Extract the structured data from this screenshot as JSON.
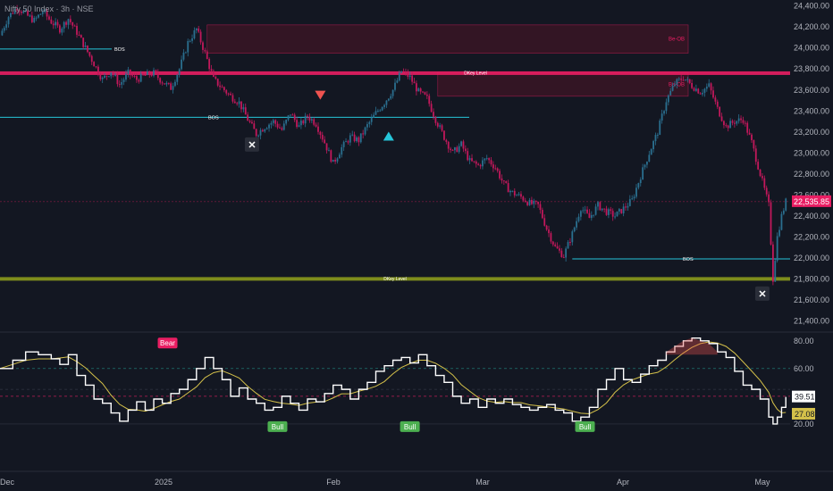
{
  "header": {
    "title": "Nifty 50 Index · 3h · NSE"
  },
  "colors": {
    "background": "#131722",
    "up": "#26a69a",
    "down": "#ef5350",
    "candle_up_body": "#2a6f8f",
    "candle_down_body": "#c2185b",
    "bos_line": "#26c6da",
    "key_level_red": "#e91e63",
    "key_level_green": "#8b9a1c",
    "bear_ob_fill": "#3a1524",
    "bear_ob_border": "#e91e63",
    "rsi_line": "#ffffff",
    "rsi_ma": "#d4c04a",
    "bull_label": "#4caf50",
    "bear_label": "#e91e63",
    "price_label_bg": "#e91e63"
  },
  "chart_data": [
    {
      "type": "candlestick",
      "title": "Nifty 50 Index · 3h · NSE",
      "y_ticks": [
        "24,400.00",
        "24,200.00",
        "24,000.00",
        "23,800.00",
        "23,600.00",
        "23,400.00",
        "23,200.00",
        "23,000.00",
        "22,800.00",
        "22,600.00",
        "22,400.00",
        "22,200.00",
        "22,000.00",
        "21,800.00",
        "21,600.00",
        "21,400.00"
      ],
      "ylim": [
        21310,
        24440
      ],
      "x_ticks": [
        "Dec",
        "2025",
        "Feb",
        "Mar",
        "Apr",
        "May"
      ],
      "last_price": "22,535.85",
      "close_path": [
        [
          0,
          24120
        ],
        [
          4,
          24300
        ],
        [
          8,
          24390
        ],
        [
          12,
          24320
        ],
        [
          16,
          24260
        ],
        [
          20,
          24350
        ],
        [
          24,
          24250
        ],
        [
          28,
          24180
        ],
        [
          32,
          24280
        ],
        [
          36,
          24150
        ],
        [
          40,
          24000
        ],
        [
          44,
          23850
        ],
        [
          48,
          23700
        ],
        [
          52,
          23780
        ],
        [
          56,
          23650
        ],
        [
          60,
          23760
        ],
        [
          64,
          23700
        ],
        [
          68,
          23740
        ],
        [
          72,
          23760
        ],
        [
          76,
          23680
        ],
        [
          80,
          23620
        ],
        [
          84,
          23800
        ],
        [
          88,
          24050
        ],
        [
          92,
          24180
        ],
        [
          96,
          23950
        ],
        [
          100,
          23700
        ],
        [
          104,
          23620
        ],
        [
          108,
          23540
        ],
        [
          112,
          23480
        ],
        [
          116,
          23320
        ],
        [
          120,
          23180
        ],
        [
          124,
          23250
        ],
        [
          128,
          23300
        ],
        [
          132,
          23220
        ],
        [
          136,
          23380
        ],
        [
          140,
          23250
        ],
        [
          144,
          23350
        ],
        [
          148,
          23280
        ],
        [
          152,
          23100
        ],
        [
          156,
          22900
        ],
        [
          160,
          23050
        ],
        [
          164,
          23150
        ],
        [
          168,
          23120
        ],
        [
          172,
          23260
        ],
        [
          176,
          23380
        ],
        [
          180,
          23480
        ],
        [
          184,
          23600
        ],
        [
          188,
          23780
        ],
        [
          192,
          23720
        ],
        [
          196,
          23580
        ],
        [
          200,
          23520
        ],
        [
          204,
          23320
        ],
        [
          208,
          23150
        ],
        [
          212,
          23000
        ],
        [
          216,
          23080
        ],
        [
          220,
          22920
        ],
        [
          224,
          22880
        ],
        [
          228,
          22950
        ],
        [
          232,
          22860
        ],
        [
          236,
          22700
        ],
        [
          240,
          22620
        ],
        [
          244,
          22580
        ],
        [
          248,
          22520
        ],
        [
          252,
          22500
        ],
        [
          256,
          22280
        ],
        [
          260,
          22100
        ],
        [
          264,
          22020
        ],
        [
          268,
          22230
        ],
        [
          272,
          22480
        ],
        [
          276,
          22380
        ],
        [
          280,
          22500
        ],
        [
          284,
          22440
        ],
        [
          288,
          22400
        ],
        [
          292,
          22470
        ],
        [
          296,
          22550
        ],
        [
          300,
          22780
        ],
        [
          304,
          23000
        ],
        [
          308,
          23200
        ],
        [
          312,
          23500
        ],
        [
          316,
          23660
        ],
        [
          320,
          23720
        ],
        [
          324,
          23640
        ],
        [
          328,
          23580
        ],
        [
          332,
          23640
        ],
        [
          336,
          23420
        ],
        [
          340,
          23250
        ],
        [
          344,
          23300
        ],
        [
          348,
          23320
        ],
        [
          352,
          23100
        ],
        [
          356,
          22800
        ],
        [
          360,
          22500
        ],
        [
          362,
          21800
        ],
        [
          364,
          22200
        ],
        [
          366,
          22400
        ],
        [
          368,
          22536
        ]
      ],
      "bos_levels": [
        {
          "label": "BOS",
          "value": 23990,
          "x_start": 0,
          "x_end": 125
        },
        {
          "label": "BOS",
          "value": 23340,
          "x_start": 0,
          "x_end": 262
        },
        {
          "label": "BOS",
          "value": 21990,
          "x_start": 268,
          "x_end": 440
        }
      ],
      "key_levels": [
        {
          "label": "DKey Level",
          "value": 23760,
          "style": "red"
        },
        {
          "label": "DKey Level",
          "value": 21800,
          "style": "green"
        }
      ],
      "order_blocks": [
        {
          "label": "Be-OB",
          "top": 24220,
          "bottom": 23950,
          "x_start": 97,
          "x_end": 440
        },
        {
          "label": "Be-OB",
          "top": 23770,
          "bottom": 23540,
          "x_start": 205,
          "x_end": 440
        }
      ],
      "markers": [
        {
          "type": "sell-triangle",
          "x": 150,
          "value": 23550
        },
        {
          "type": "buy-triangle",
          "x": 182,
          "value": 23160
        },
        {
          "type": "x-mark",
          "x": 118,
          "value": 23080
        },
        {
          "type": "x-mark",
          "x": 357,
          "value": 21660
        }
      ]
    },
    {
      "type": "line",
      "title": "RSI",
      "y_ticks": [
        "80.00",
        "60.00",
        "20.00"
      ],
      "ylim": [
        0,
        85
      ],
      "current_rsi": "39.51",
      "current_ma": "27.08",
      "rsi_path": [
        [
          0,
          60
        ],
        [
          6,
          66
        ],
        [
          12,
          72
        ],
        [
          18,
          70
        ],
        [
          24,
          67
        ],
        [
          28,
          63
        ],
        [
          32,
          70
        ],
        [
          36,
          55
        ],
        [
          40,
          48
        ],
        [
          44,
          38
        ],
        [
          48,
          35
        ],
        [
          52,
          28
        ],
        [
          56,
          22
        ],
        [
          60,
          30
        ],
        [
          64,
          36
        ],
        [
          68,
          30
        ],
        [
          72,
          38
        ],
        [
          76,
          35
        ],
        [
          80,
          42
        ],
        [
          84,
          45
        ],
        [
          88,
          52
        ],
        [
          92,
          60
        ],
        [
          96,
          68
        ],
        [
          100,
          60
        ],
        [
          104,
          52
        ],
        [
          108,
          40
        ],
        [
          112,
          46
        ],
        [
          116,
          38
        ],
        [
          120,
          35
        ],
        [
          124,
          30
        ],
        [
          128,
          32
        ],
        [
          132,
          40
        ],
        [
          136,
          35
        ],
        [
          140,
          30
        ],
        [
          144,
          38
        ],
        [
          148,
          36
        ],
        [
          152,
          42
        ],
        [
          156,
          48
        ],
        [
          160,
          45
        ],
        [
          164,
          38
        ],
        [
          168,
          45
        ],
        [
          172,
          50
        ],
        [
          176,
          58
        ],
        [
          180,
          62
        ],
        [
          184,
          66
        ],
        [
          188,
          68
        ],
        [
          192,
          64
        ],
        [
          196,
          70
        ],
        [
          200,
          62
        ],
        [
          204,
          55
        ],
        [
          208,
          50
        ],
        [
          212,
          40
        ],
        [
          216,
          35
        ],
        [
          220,
          38
        ],
        [
          224,
          32
        ],
        [
          228,
          38
        ],
        [
          232,
          35
        ],
        [
          236,
          38
        ],
        [
          240,
          34
        ],
        [
          244,
          32
        ],
        [
          248,
          30
        ],
        [
          252,
          32
        ],
        [
          256,
          34
        ],
        [
          260,
          30
        ],
        [
          264,
          28
        ],
        [
          268,
          22
        ],
        [
          272,
          25
        ],
        [
          276,
          32
        ],
        [
          280,
          45
        ],
        [
          284,
          52
        ],
        [
          288,
          60
        ],
        [
          292,
          52
        ],
        [
          296,
          50
        ],
        [
          300,
          56
        ],
        [
          304,
          62
        ],
        [
          308,
          66
        ],
        [
          312,
          72
        ],
        [
          316,
          76
        ],
        [
          320,
          80
        ],
        [
          324,
          82
        ],
        [
          328,
          80
        ],
        [
          332,
          78
        ],
        [
          336,
          72
        ],
        [
          340,
          68
        ],
        [
          344,
          58
        ],
        [
          348,
          48
        ],
        [
          352,
          45
        ],
        [
          356,
          38
        ],
        [
          360,
          25
        ],
        [
          362,
          20
        ],
        [
          364,
          25
        ],
        [
          366,
          32
        ],
        [
          368,
          39.5
        ]
      ],
      "labels": [
        {
          "text": "Bear",
          "x": 45,
          "value": 72
        },
        {
          "text": "Bull",
          "x": 86,
          "value": 22
        },
        {
          "text": "Bull",
          "x": 148,
          "value": 22
        },
        {
          "text": "Bull",
          "x": 230,
          "value": 22
        }
      ],
      "levels": [
        60,
        45,
        40,
        20
      ]
    }
  ]
}
